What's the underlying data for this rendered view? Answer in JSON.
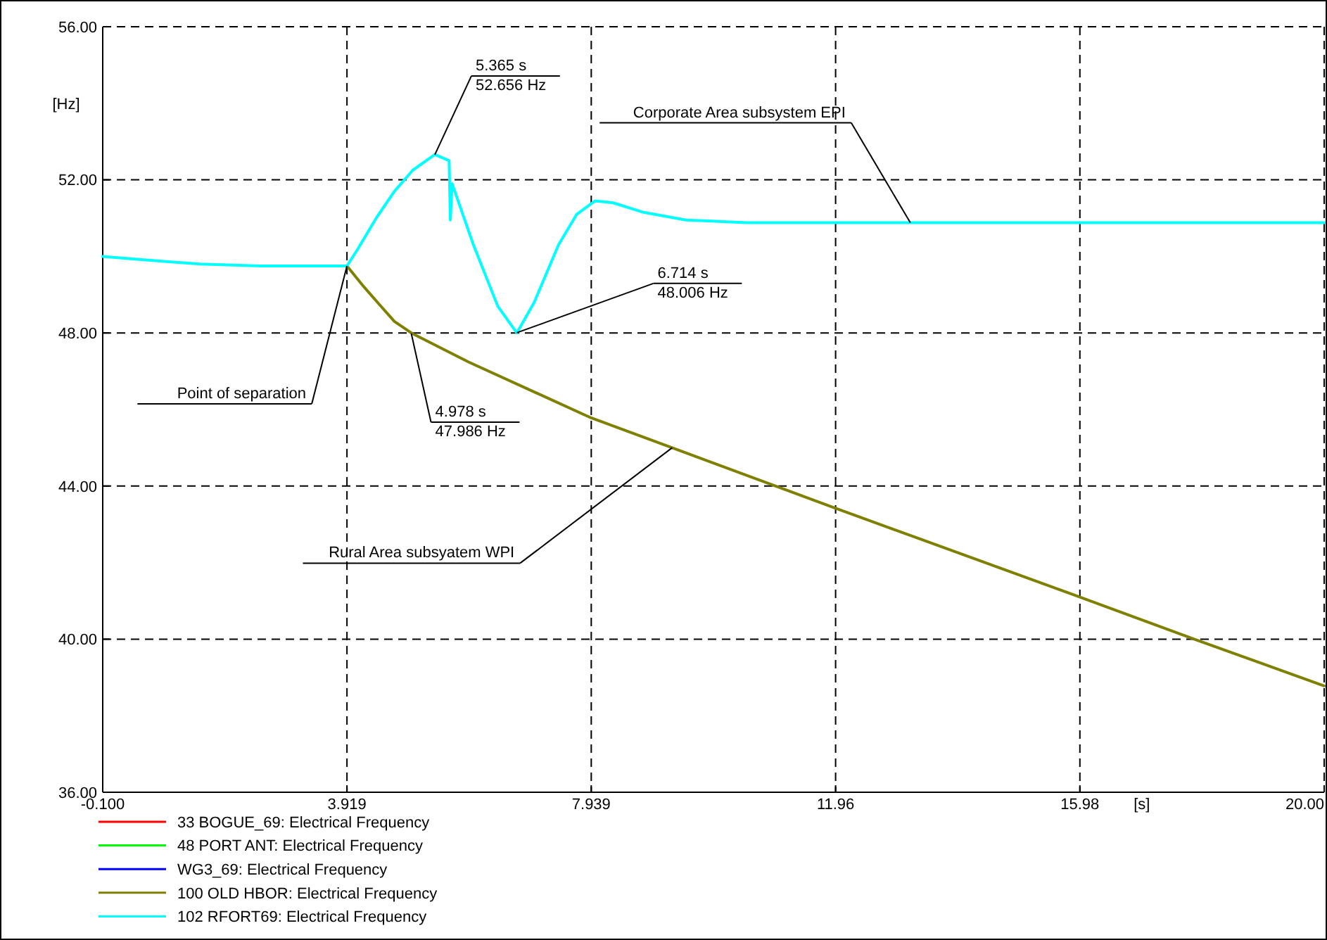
{
  "chart_data": {
    "type": "line",
    "xlabel": "[s]",
    "ylabel": "[Hz]",
    "xlim": [
      -0.1,
      20
    ],
    "xticks": [
      {
        "value": -0.1,
        "label": "-0.100"
      },
      {
        "value": 3.919,
        "label": "3.919"
      },
      {
        "value": 7.939,
        "label": "7.939"
      },
      {
        "value": 11.96,
        "label": "11.96"
      },
      {
        "value": 15.98,
        "label": "15.98"
      },
      {
        "value": 20,
        "label": "20.00"
      }
    ],
    "ylim": [
      36,
      56
    ],
    "yticks": [
      {
        "value": 36,
        "label": "36.00"
      },
      {
        "value": 40,
        "label": "40.00"
      },
      {
        "value": 44,
        "label": "44.00"
      },
      {
        "value": 48,
        "label": "48.00"
      },
      {
        "value": 52,
        "label": "52.00"
      },
      {
        "value": 56,
        "label": "56.00"
      }
    ],
    "grid": true,
    "legend": "bottom",
    "line_style": "solid",
    "marker": "none",
    "series": [
      {
        "name": "33 BOGUE_69: Electrical Frequency",
        "color": "#ff0000"
      },
      {
        "name": "48 PORT ANT: Electrical Frequency",
        "color": "#00ff00"
      },
      {
        "name": "WG3_69: Electrical Frequency",
        "color": "#0000ff"
      },
      {
        "name": "100 OLD HBOR: Electrical Frequency",
        "color": "#808000",
        "x": [
          3.919,
          4.2,
          4.46,
          4.7,
          4.978,
          5.92,
          7.939,
          9.27,
          11.96,
          15.98,
          17.86,
          20
        ],
        "values": [
          49.75,
          49.2,
          48.73,
          48.3,
          48.0,
          47.24,
          45.78,
          45.0,
          43.42,
          41.1,
          40.0,
          38.78
        ]
      },
      {
        "name": "102 RFORT69: Electrical Frequency",
        "color": "#00ffff",
        "x": [
          -0.1,
          0.5,
          1.5,
          2.5,
          3.919,
          4.1,
          4.4,
          4.7,
          5.0,
          5.365,
          5.6,
          5.62,
          5.65,
          6.0,
          6.4,
          6.714,
          7.0,
          7.4,
          7.7,
          8.0,
          8.3,
          8.8,
          9.5,
          10.5,
          20
        ],
        "values": [
          50.0,
          49.92,
          49.8,
          49.75,
          49.75,
          50.2,
          51.0,
          51.7,
          52.25,
          52.66,
          52.5,
          50.95,
          51.9,
          50.3,
          48.7,
          48.0,
          48.8,
          50.3,
          51.1,
          51.45,
          51.4,
          51.15,
          50.95,
          50.88,
          50.88
        ]
      }
    ],
    "annotations": [
      {
        "text": "Point of separation",
        "x": 3.919,
        "y": 49.75
      },
      {
        "text": "4.978 s\n47.986 Hz",
        "x": 4.978,
        "y": 47.986
      },
      {
        "text": "5.365 s\n52.656 Hz",
        "x": 5.365,
        "y": 52.656
      },
      {
        "text": "6.714 s\n48.006 Hz",
        "x": 6.714,
        "y": 48.006
      },
      {
        "text": "Corporate Area subsystem EPI",
        "x": 13.19,
        "y": 50.88
      },
      {
        "text": "Rural Area subsyatem WPI",
        "x": 9.27,
        "y": 45.0
      }
    ]
  }
}
